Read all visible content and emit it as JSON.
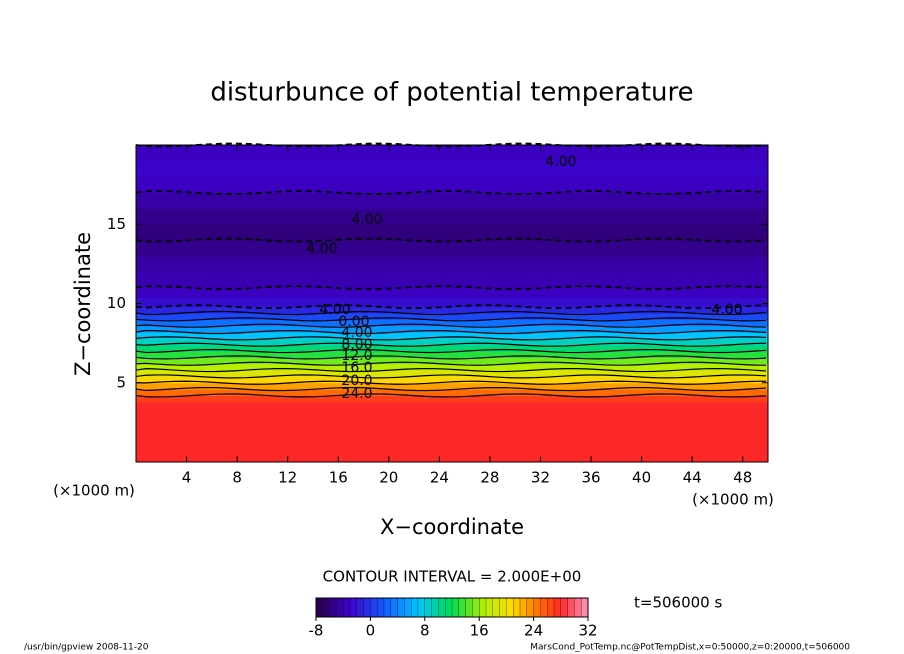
{
  "chart_data": {
    "type": "contour",
    "title": "disturbunce of potential temperature",
    "x_label": "X−coordinate",
    "y_label": "Z−coordinate",
    "x_unit": "(×1000 m)",
    "y_unit": "(×1000 m)",
    "xlim": [
      0,
      50
    ],
    "ylim": [
      0,
      20
    ],
    "xticks": [
      4,
      8,
      12,
      16,
      20,
      24,
      28,
      32,
      36,
      40,
      44,
      48
    ],
    "yticks": [
      5,
      10,
      15
    ],
    "profile": {
      "z": [
        0,
        3.8,
        4.2,
        4.6,
        5.0,
        5.4,
        5.8,
        6.2,
        6.6,
        7.0,
        7.4,
        7.8,
        8.2,
        8.6,
        9.0,
        9.4,
        9.8,
        10.4,
        11.0,
        12.0,
        13.0,
        14.0,
        15.0,
        16.0,
        17.0,
        18.0,
        19.0,
        20.0
      ],
      "values": [
        28,
        28,
        26,
        24,
        22,
        20,
        18,
        16,
        14,
        12,
        10,
        8,
        6,
        4,
        2,
        0,
        -2,
        -3,
        -4,
        -4,
        -5,
        -6,
        -6,
        -5,
        -4,
        -3,
        -3,
        -4
      ]
    },
    "contour_labels": [
      "4.00",
      "4.00",
      "4.00",
      "4.00",
      "4.00",
      "0.00",
      "4.00",
      "8.00",
      "12.0",
      "16.0",
      "20.0",
      "24.0"
    ],
    "contour_interval": "CONTOUR INTERVAL = 2.000E+00",
    "colorbar": {
      "lim": [
        -8,
        32
      ],
      "ticks": [
        -8,
        0,
        8,
        16,
        24,
        32
      ]
    },
    "time_label": "t=506000 s",
    "footer_left": "/usr/bin/gpview   2008-11-20",
    "footer_right": "MarsCond_PotTemp.nc@PotTempDist,x=0:50000,z=0:20000,t=506000"
  }
}
